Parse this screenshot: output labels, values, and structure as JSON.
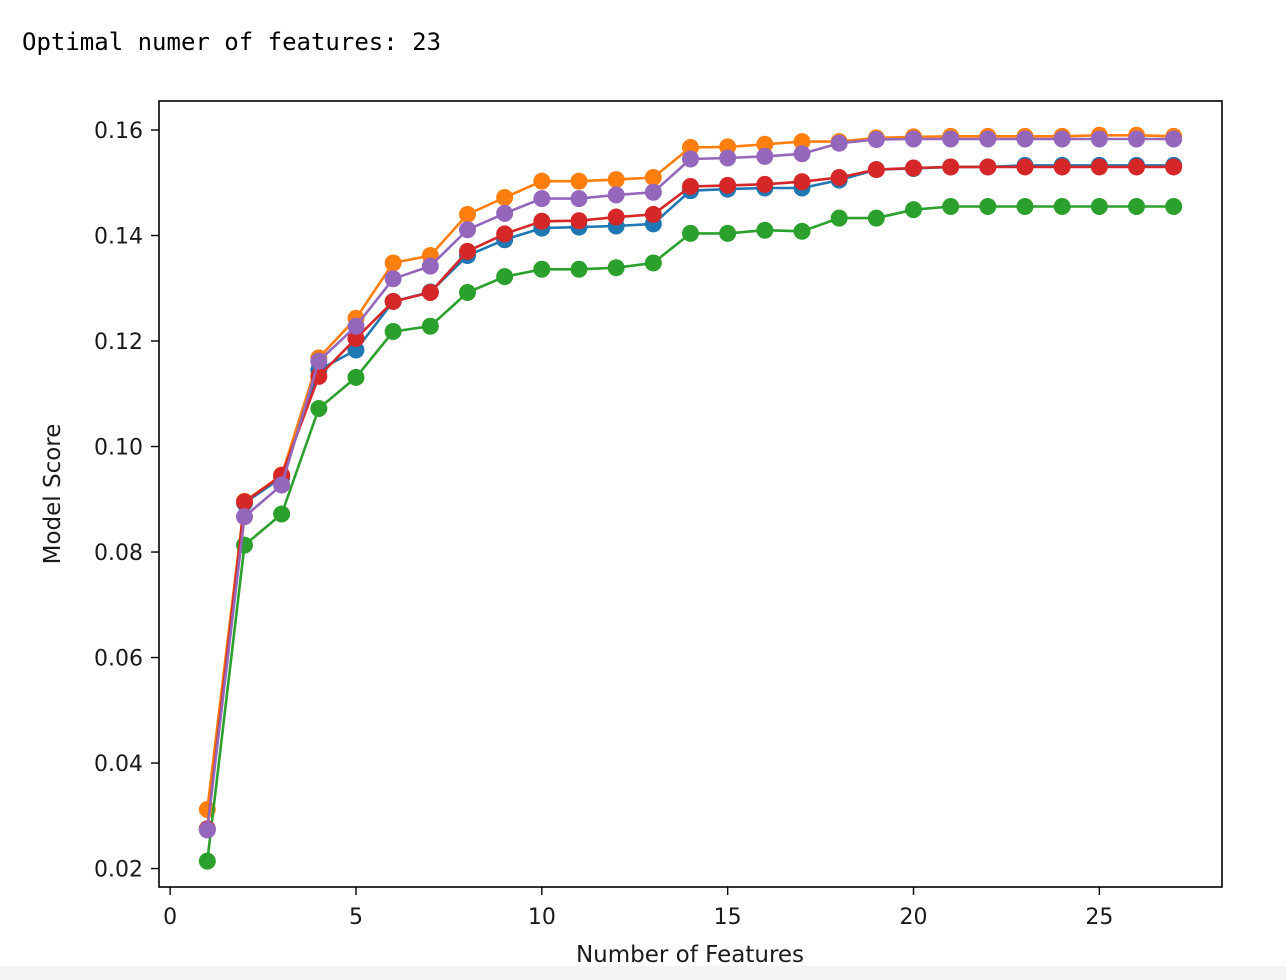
{
  "output": {
    "text": "Optimal numer of features: 23"
  },
  "chart_data": {
    "type": "line",
    "title": "",
    "xlabel": "Number of Features",
    "ylabel": "Model Score",
    "xlim": [
      -0.3,
      28.3
    ],
    "ylim": [
      0.0165,
      0.1655
    ],
    "xticks": [
      0,
      5,
      10,
      15,
      20,
      25
    ],
    "xtick_labels": [
      "0",
      "5",
      "10",
      "15",
      "20",
      "25"
    ],
    "yticks": [
      0.02,
      0.04,
      0.06,
      0.08,
      0.1,
      0.12,
      0.14,
      0.16
    ],
    "ytick_labels": [
      "0.02",
      "0.04",
      "0.06",
      "0.08",
      "0.10",
      "0.12",
      "0.14",
      "0.16"
    ],
    "grid": false,
    "marker": "circle",
    "x": [
      1,
      2,
      3,
      4,
      5,
      6,
      7,
      8,
      9,
      10,
      11,
      12,
      13,
      14,
      15,
      16,
      17,
      18,
      19,
      20,
      21,
      22,
      23,
      24,
      25,
      26,
      27
    ],
    "series": [
      {
        "color": "#1f77b4",
        "values": [
          0.0275,
          0.0893,
          0.0941,
          0.1145,
          0.1183,
          0.1275,
          0.1293,
          0.1362,
          0.1392,
          0.1414,
          0.1416,
          0.1418,
          0.1422,
          0.1485,
          0.1488,
          0.149,
          0.149,
          0.1505,
          0.1525,
          0.1527,
          0.153,
          0.153,
          0.1533,
          0.1533,
          0.1533,
          0.1533,
          0.1533
        ]
      },
      {
        "color": "#ff7f0e",
        "values": [
          0.0312,
          0.0896,
          0.0946,
          0.1168,
          0.1243,
          0.1348,
          0.1362,
          0.144,
          0.1472,
          0.1503,
          0.1503,
          0.1506,
          0.151,
          0.1567,
          0.1568,
          0.1573,
          0.1578,
          0.1578,
          0.1585,
          0.1587,
          0.1588,
          0.1588,
          0.1588,
          0.1588,
          0.159,
          0.159,
          0.1588
        ]
      },
      {
        "color": "#2ca02c",
        "values": [
          0.0214,
          0.0813,
          0.0872,
          0.1072,
          0.1131,
          0.1218,
          0.1228,
          0.1292,
          0.1322,
          0.1336,
          0.1336,
          0.1339,
          0.1348,
          0.1404,
          0.1404,
          0.141,
          0.1408,
          0.1433,
          0.1433,
          0.1449,
          0.1455,
          0.1455,
          0.1455,
          0.1455,
          0.1455,
          0.1455,
          0.1455
        ]
      },
      {
        "color": "#d62728",
        "values": [
          0.0275,
          0.0895,
          0.0945,
          0.1133,
          0.1205,
          0.1275,
          0.1292,
          0.137,
          0.1403,
          0.1427,
          0.1428,
          0.1435,
          0.144,
          0.1493,
          0.1495,
          0.1497,
          0.1502,
          0.151,
          0.1525,
          0.1528,
          0.153,
          0.153,
          0.153,
          0.153,
          0.153,
          0.153,
          0.153
        ]
      },
      {
        "color": "#9467bd",
        "values": [
          0.0273,
          0.0867,
          0.0927,
          0.1162,
          0.1228,
          0.1318,
          0.1342,
          0.1411,
          0.1442,
          0.147,
          0.147,
          0.1477,
          0.1482,
          0.1545,
          0.1547,
          0.155,
          0.1555,
          0.1575,
          0.1582,
          0.1583,
          0.1583,
          0.1583,
          0.1583,
          0.1583,
          0.1583,
          0.1583,
          0.1583
        ]
      }
    ]
  }
}
